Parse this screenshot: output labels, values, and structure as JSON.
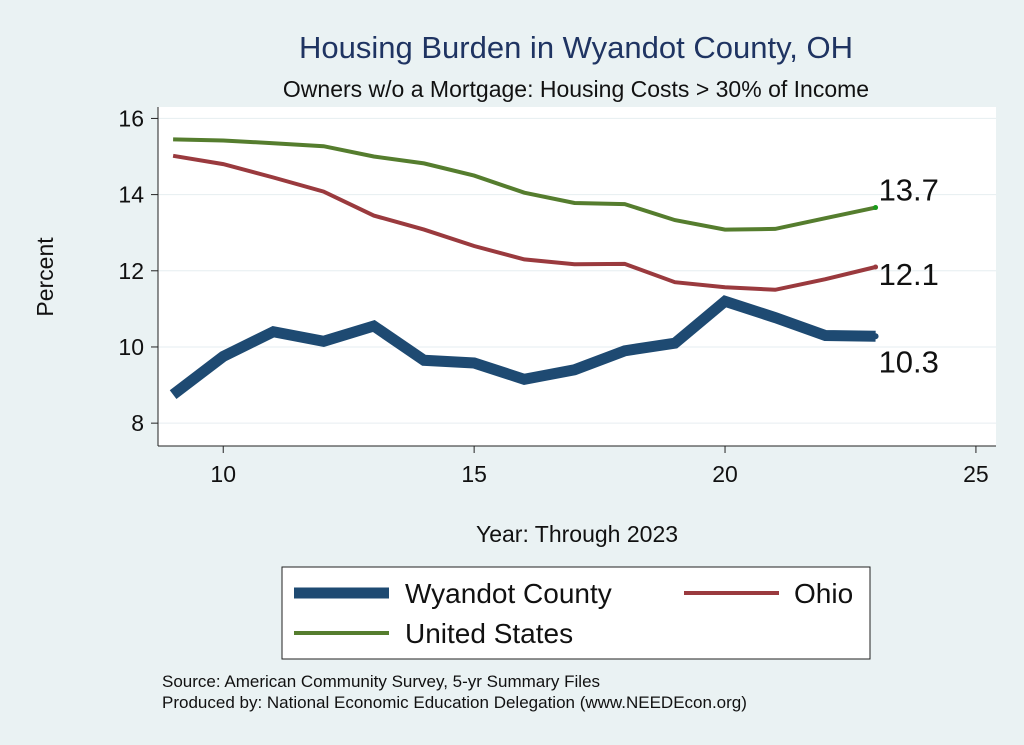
{
  "chart_data": {
    "type": "line",
    "title": "Housing Burden in Wyandot County, OH",
    "subtitle": "Owners w/o a Mortgage: Housing Costs > 30% of Income",
    "xlabel": "Year: Through 2023",
    "ylabel": "Percent",
    "xlim": [
      8.7,
      25.4
    ],
    "ylim": [
      7.4,
      16.3
    ],
    "xticks": [
      10,
      15,
      20,
      25
    ],
    "yticks": [
      8,
      10,
      12,
      14,
      16
    ],
    "grid": true,
    "x": [
      9,
      10,
      11,
      12,
      13,
      14,
      15,
      16,
      17,
      18,
      19,
      20,
      21,
      22,
      23
    ],
    "series": [
      {
        "name": "Wyandot County",
        "color": "#1e4a72",
        "values": [
          8.75,
          9.75,
          10.4,
          10.15,
          10.55,
          9.65,
          9.58,
          9.15,
          9.4,
          9.9,
          10.1,
          11.2,
          10.77,
          10.3,
          10.28
        ],
        "end_label": "10.3"
      },
      {
        "name": "Ohio",
        "color": "#9a3a3e",
        "values": [
          15.02,
          14.8,
          14.45,
          14.08,
          13.45,
          13.08,
          12.65,
          12.3,
          12.17,
          12.18,
          11.7,
          11.57,
          11.5,
          11.78,
          12.1
        ],
        "end_label": "12.1"
      },
      {
        "name": "United States",
        "color": "#557d2e",
        "values": [
          15.45,
          15.42,
          15.35,
          15.27,
          15.0,
          14.82,
          14.5,
          14.05,
          13.78,
          13.75,
          13.33,
          13.08,
          13.1,
          13.38,
          13.66
        ],
        "end_label": "13.7"
      }
    ],
    "legend": {
      "placement": "bottom",
      "entries": [
        "Wyandot County",
        "Ohio",
        "United States"
      ]
    }
  },
  "source": {
    "line1": "Source: American Community Survey, 5-yr Summary Files",
    "line2": "Produced by: National Economic Education Delegation (www.NEEDEcon.org)"
  },
  "colors": {
    "background": "#eaf2f3",
    "plot_background": "#ffffff",
    "title": "#1f3462"
  }
}
